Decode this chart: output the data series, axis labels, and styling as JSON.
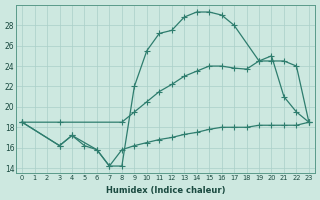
{
  "xlabel": "Humidex (Indice chaleur)",
  "bg_color": "#cde8e0",
  "line_color": "#2e7d6e",
  "grid_color": "#aacfc8",
  "xlim": [
    -0.5,
    23.5
  ],
  "ylim": [
    13.5,
    30.0
  ],
  "yticks": [
    14,
    16,
    18,
    20,
    22,
    24,
    26,
    28
  ],
  "xticks": [
    0,
    1,
    2,
    3,
    4,
    5,
    6,
    7,
    8,
    9,
    10,
    11,
    12,
    13,
    14,
    15,
    16,
    17,
    18,
    19,
    20,
    21,
    22,
    23
  ],
  "line1_x": [
    0,
    3,
    4,
    6,
    7,
    8,
    9,
    10,
    11,
    12,
    13,
    14,
    15,
    16,
    17,
    19,
    20,
    21,
    22,
    23
  ],
  "line1_y": [
    18.5,
    16.2,
    17.2,
    15.8,
    14.2,
    14.2,
    22.0,
    25.5,
    27.2,
    27.5,
    28.8,
    29.3,
    29.3,
    29.0,
    28.0,
    24.5,
    25.0,
    21.0,
    19.5,
    18.5
  ],
  "line2_x": [
    0,
    3,
    8,
    9,
    10,
    11,
    12,
    13,
    14,
    15,
    16,
    17,
    18,
    19,
    20,
    21,
    22,
    23
  ],
  "line2_y": [
    18.5,
    18.5,
    18.5,
    19.5,
    20.5,
    21.5,
    22.2,
    23.0,
    23.5,
    24.0,
    24.0,
    23.8,
    23.7,
    24.5,
    24.5,
    24.5,
    24.0,
    18.5
  ],
  "line3_x": [
    0,
    3,
    4,
    5,
    6,
    7,
    8,
    9,
    10,
    11,
    12,
    13,
    14,
    15,
    16,
    17,
    18,
    19,
    20,
    21,
    22,
    23
  ],
  "line3_y": [
    18.5,
    16.2,
    17.2,
    16.2,
    15.8,
    14.2,
    15.8,
    16.2,
    16.5,
    16.8,
    17.0,
    17.3,
    17.5,
    17.8,
    18.0,
    18.0,
    18.0,
    18.2,
    18.2,
    18.2,
    18.2,
    18.5
  ]
}
